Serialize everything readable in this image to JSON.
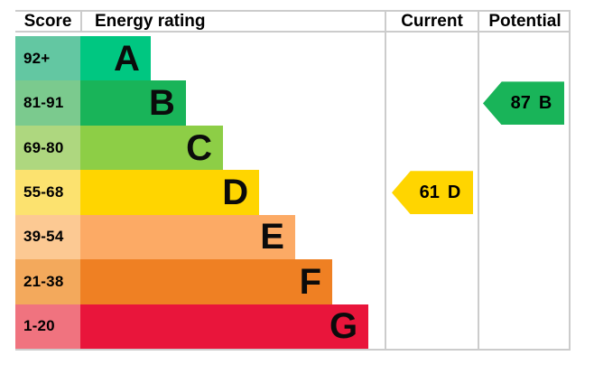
{
  "header": {
    "score": "Score",
    "energy_rating": "Energy rating",
    "current": "Current",
    "potential": "Potential"
  },
  "bands": [
    {
      "letter": "A",
      "score_range": "92+",
      "color": "#00c781",
      "score_tint": "#63c7a2",
      "width_pct": 23.1
    },
    {
      "letter": "B",
      "score_range": "81-91",
      "color": "#19b459",
      "score_tint": "#7bca8e",
      "width_pct": 34.7
    },
    {
      "letter": "C",
      "score_range": "69-80",
      "color": "#8dce46",
      "score_tint": "#aed77f",
      "width_pct": 46.9
    },
    {
      "letter": "D",
      "score_range": "55-68",
      "color": "#ffd500",
      "score_tint": "#fce26f",
      "width_pct": 58.8
    },
    {
      "letter": "E",
      "score_range": "39-54",
      "color": "#fcaa65",
      "score_tint": "#fcc993",
      "width_pct": 70.6
    },
    {
      "letter": "F",
      "score_range": "21-38",
      "color": "#ef8023",
      "score_tint": "#f3a95c",
      "width_pct": 82.8
    },
    {
      "letter": "G",
      "score_range": "1-20",
      "color": "#e9153b",
      "score_tint": "#f0737f",
      "width_pct": 94.7
    }
  ],
  "current": {
    "value": "61",
    "band": "D",
    "band_index": 3,
    "color": "#ffd500"
  },
  "potential": {
    "value": "87",
    "band": "B",
    "band_index": 1,
    "color": "#19b459"
  },
  "border_color": "#cccccc",
  "chart_data": {
    "type": "bar",
    "title": "Energy rating",
    "orientation": "horizontal",
    "categories": [
      "A",
      "B",
      "C",
      "D",
      "E",
      "F",
      "G"
    ],
    "category_score_ranges": [
      "92+",
      "81-91",
      "69-80",
      "55-68",
      "39-54",
      "21-38",
      "1-20"
    ],
    "values": [
      23.1,
      34.7,
      46.9,
      58.8,
      70.6,
      82.8,
      94.7
    ],
    "value_unit": "percent of band column width",
    "bar_colors": [
      "#00c781",
      "#19b459",
      "#8dce46",
      "#ffd500",
      "#fcaa65",
      "#ef8023",
      "#e9153b"
    ],
    "columns": [
      "Score",
      "Energy rating",
      "Current",
      "Potential"
    ],
    "markers": [
      {
        "name": "Current",
        "value": 61,
        "band": "D",
        "color": "#ffd500"
      },
      {
        "name": "Potential",
        "value": 87,
        "band": "B",
        "color": "#19b459"
      }
    ],
    "grid": false,
    "legend": false
  }
}
